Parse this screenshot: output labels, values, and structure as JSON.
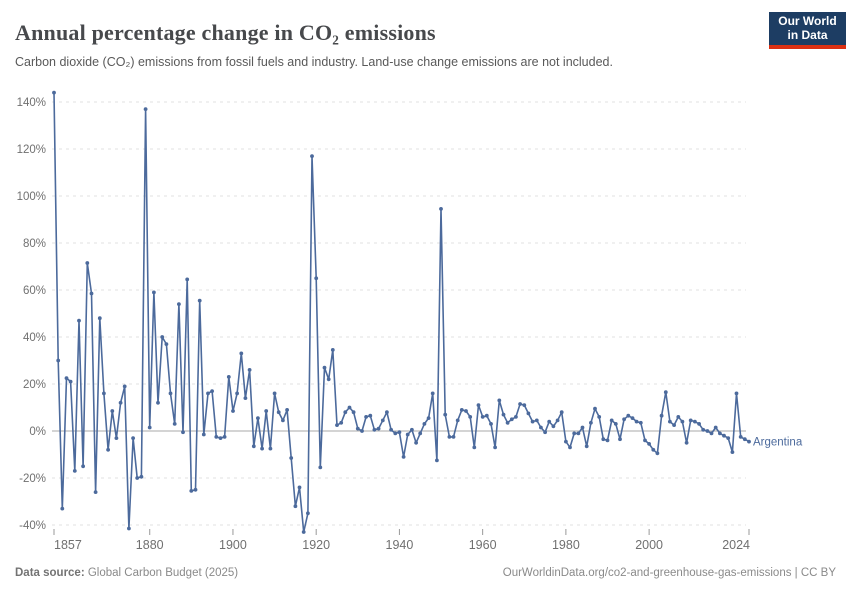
{
  "header": {
    "title": "Annual percentage change in CO₂ emissions",
    "subtitle": "Carbon dioxide (CO₂) emissions from fossil fuels and industry. Land-use change emissions are not included.",
    "logo": {
      "line1": "Our World",
      "line2": "in Data"
    }
  },
  "footer": {
    "source_label": "Data source:",
    "source_value": " Global Carbon Budget (2025)",
    "link": "OurWorldinData.org/co2-and-greenhouse-gas-emissions | CC BY"
  },
  "chart_data": {
    "type": "line",
    "title": "Annual percentage change in CO₂ emissions",
    "xlabel": "",
    "ylabel": "",
    "x_years": {
      "start": 1857,
      "end": 2024,
      "frequency": "annual"
    },
    "x_ticks": [
      1857,
      1880,
      1900,
      1920,
      1940,
      1960,
      1980,
      2000,
      2024
    ],
    "y_ticks": [
      -40,
      -20,
      0,
      20,
      40,
      60,
      80,
      100,
      120,
      140
    ],
    "y_tick_suffix": "%",
    "ylim": [
      -46,
      148
    ],
    "grid": "horizontal-dashed",
    "zero_line": true,
    "legend_position": "end-of-line-label",
    "series": [
      {
        "name": "Argentina",
        "color": "#4c6a9c",
        "values": [
          144,
          30,
          -33,
          22.5,
          21,
          -17,
          47,
          -15,
          71.5,
          58.5,
          -26,
          48,
          16,
          -8,
          8.5,
          -3,
          12,
          19,
          -41.5,
          -3,
          -20,
          -19.5,
          137,
          1.5,
          59,
          12,
          40,
          37,
          16,
          3,
          54,
          -0.5,
          64.5,
          -25.5,
          -25,
          55.5,
          -1.5,
          16,
          17,
          -2.5,
          -3,
          -2.5,
          23,
          8.5,
          16,
          33,
          14,
          26,
          -6.5,
          5.5,
          -7.5,
          8.5,
          -7.5,
          16,
          8,
          4.5,
          9,
          -11.5,
          -32,
          -24,
          -43,
          -35,
          117,
          65,
          -15.5,
          27,
          22,
          34.5,
          2.5,
          3.5,
          8,
          10,
          8,
          1,
          0,
          6,
          6.5,
          0.5,
          1,
          4.5,
          8,
          0.5,
          -1,
          -0.5,
          -11,
          -1.5,
          0.5,
          -5,
          -1,
          3,
          5.5,
          16,
          -12.5,
          94.5,
          7,
          -2.5,
          -2.5,
          4.5,
          9,
          8.5,
          6,
          -7,
          11,
          6,
          6.5,
          3,
          -7,
          13,
          7,
          3.5,
          5,
          6,
          11.5,
          11,
          7.5,
          4,
          4.5,
          1.5,
          -0.5,
          4,
          2,
          4.5,
          8,
          -4.5,
          -7,
          -1,
          -1,
          1.5,
          -6.5,
          3.5,
          9.5,
          6,
          -3.5,
          -4,
          4.5,
          3,
          -3.5,
          5,
          6.5,
          5.5,
          4,
          3.5,
          -4,
          -5.5,
          -8,
          -9.5,
          6.5,
          16.5,
          4,
          2.5,
          6,
          4,
          -5,
          4.5,
          4,
          3,
          0.5,
          0,
          -1,
          1.5,
          -1,
          -2,
          -3,
          -9,
          16,
          -2.5,
          -3.5,
          -4.5
        ]
      }
    ],
    "colors": {
      "line": "#4c6a9c",
      "grid": "#e2e2e2",
      "zero_line": "#a8a8a8",
      "tick_text": "#707070",
      "logo_bg": "#1d3d63",
      "logo_red": "#dc3012"
    }
  }
}
